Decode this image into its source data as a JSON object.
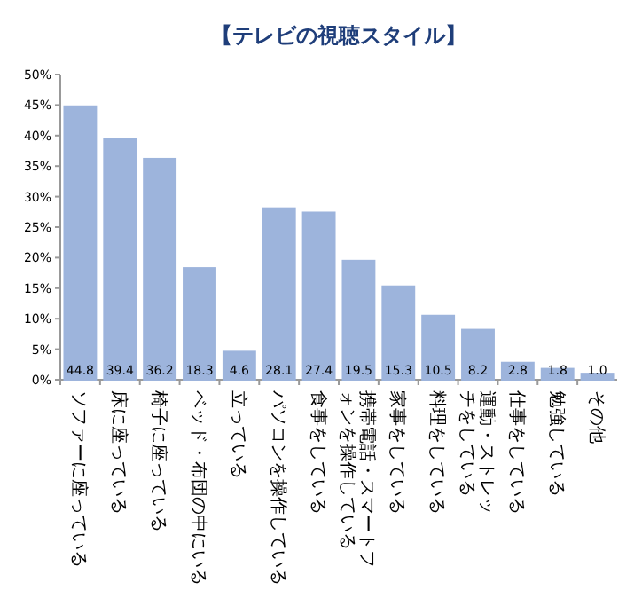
{
  "chart_data": {
    "type": "bar",
    "title": "【テレビの視聴スタイル】",
    "categories": [
      "ソファーに座っている",
      "床に座っている",
      "椅子に座っている",
      "ベッド・布団の中にいる",
      "立っている",
      "パソコンを操作している",
      "食事をしている",
      "携帯電話・スマートフォンを操作している",
      "家事をしている",
      "料理をしている",
      "運動・ストレッチをしている",
      "仕事をしている",
      "勉強している",
      "その他"
    ],
    "values": [
      44.8,
      39.4,
      36.2,
      18.3,
      4.6,
      28.1,
      27.4,
      19.5,
      15.3,
      10.5,
      8.2,
      2.8,
      1.8,
      1.0
    ],
    "value_labels": [
      "44.8",
      "39.4",
      "36.2",
      "18.3",
      "4.6",
      "28.1",
      "27.4",
      "19.5",
      "15.3",
      "10.5",
      "8.2",
      "2.8",
      "1.8",
      "1.0"
    ],
    "color": "#9db4dc",
    "grid": false,
    "ylim": [
      0,
      50
    ],
    "yticks": [
      {
        "value": 0,
        "label": "0%"
      },
      {
        "value": 5,
        "label": "5%"
      },
      {
        "value": 10,
        "label": "10%"
      },
      {
        "value": 15,
        "label": "15%"
      },
      {
        "value": 20,
        "label": "20%"
      },
      {
        "value": 25,
        "label": "25%"
      },
      {
        "value": 30,
        "label": "30%"
      },
      {
        "value": 35,
        "label": "35%"
      },
      {
        "value": 40,
        "label": "40%"
      },
      {
        "value": 45,
        "label": "45%"
      },
      {
        "value": 50,
        "label": "50%"
      }
    ]
  }
}
